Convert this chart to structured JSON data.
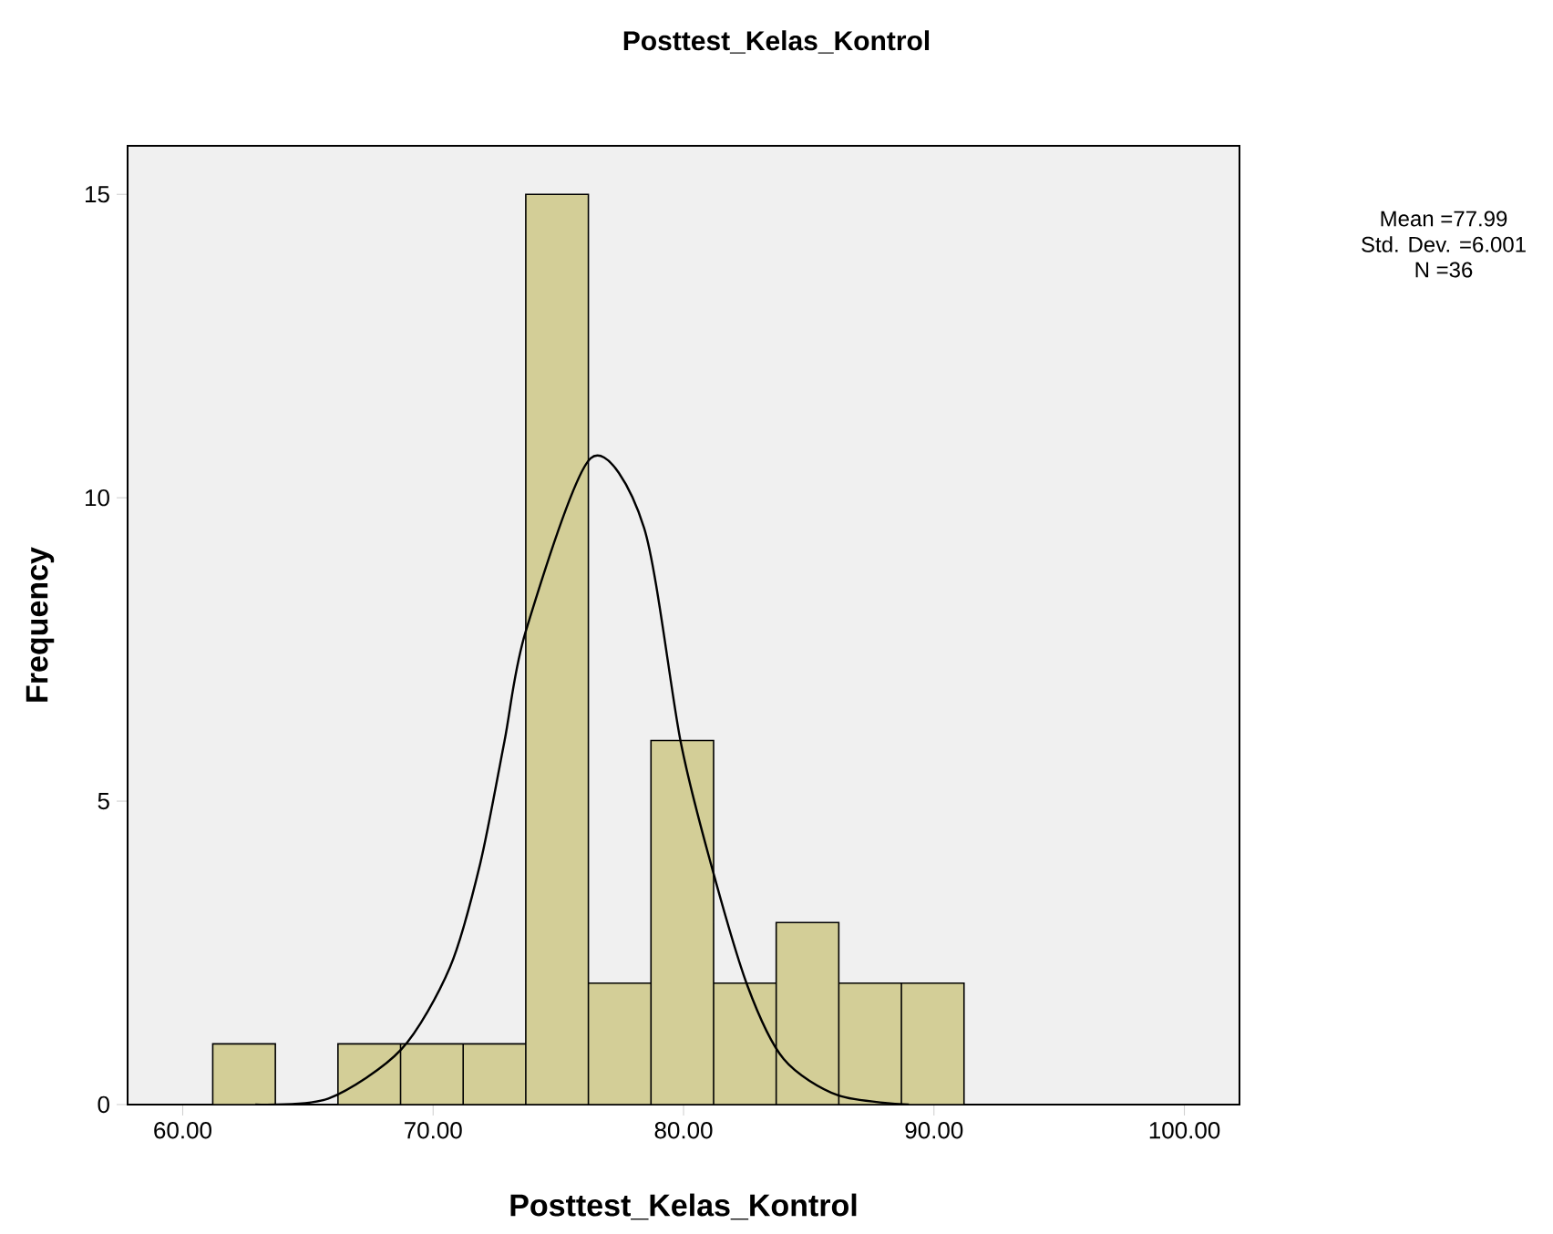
{
  "chart_data": {
    "type": "histogram",
    "title": "Posttest_Kelas_Kontrol",
    "xlabel": "Posttest_Kelas_Kontrol",
    "ylabel": "Frequency",
    "annotations": [
      "Mean =77.99",
      "Std. Dev. =6.001",
      "N =36"
    ],
    "bins": [
      61.2,
      63.7,
      66.2,
      68.7,
      71.2,
      73.7,
      76.2,
      78.7,
      81.2,
      83.7,
      86.2,
      88.7,
      91.2
    ],
    "values": [
      1,
      0,
      1,
      1,
      1,
      15,
      2,
      6,
      2,
      3,
      2,
      2
    ],
    "color": "#d3ce97",
    "series": [
      {
        "type": "line",
        "color": "#000000",
        "x": [
          62.9,
          65.82,
          68.73,
          70.67,
          71.88,
          72.85,
          73.7,
          76.29,
          78.42,
          79.88,
          81.09,
          82.55,
          84.0,
          86.18,
          89.0
        ],
        "values": [
          0,
          0.1,
          0.91,
          2.26,
          3.97,
          5.99,
          7.8,
          10.65,
          9.51,
          5.99,
          3.97,
          1.96,
          0.75,
          0.15,
          0
        ]
      }
    ],
    "xlim": [
      57.8,
      102.2
    ],
    "ylim": [
      0,
      15.8
    ],
    "xticks": [
      {
        "value": 60,
        "label": "60.00"
      },
      {
        "value": 70,
        "label": "70.00"
      },
      {
        "value": 80,
        "label": "80.00"
      },
      {
        "value": 90,
        "label": "90.00"
      },
      {
        "value": 100,
        "label": "100.00"
      }
    ],
    "yticks": [
      0,
      5,
      10,
      15
    ]
  }
}
